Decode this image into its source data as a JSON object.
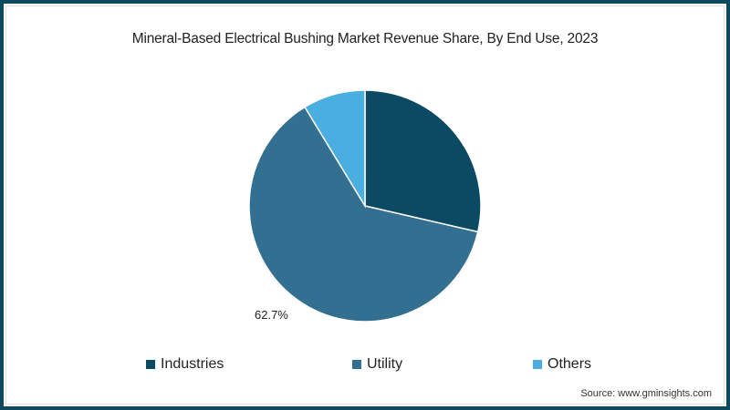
{
  "chart_data": {
    "type": "pie",
    "title": "Mineral-Based Electrical Bushing Market Revenue Share, By End Use, 2023",
    "categories": [
      "Industries",
      "Utility",
      "Others"
    ],
    "values": [
      28.6,
      62.7,
      8.7
    ],
    "colors": [
      "#0b4a62",
      "#336f90",
      "#4aaee0"
    ],
    "data_labels": [
      {
        "category": "Utility",
        "text": "62.7%"
      }
    ],
    "start_angle_deg": 0,
    "direction": "clockwise",
    "legend_position": "bottom",
    "source": "Source: www.gminsights.com"
  },
  "title": "Mineral-Based Electrical Bushing Market Revenue Share, By End Use, 2023",
  "label": "62.7%",
  "legend": [
    {
      "label": "Industries",
      "color": "#0b4a62"
    },
    {
      "label": "Utility",
      "color": "#336f90"
    },
    {
      "label": "Others",
      "color": "#4aaee0"
    }
  ],
  "source": "Source: www.gminsights.com",
  "frame_color": "#0e4a5e"
}
